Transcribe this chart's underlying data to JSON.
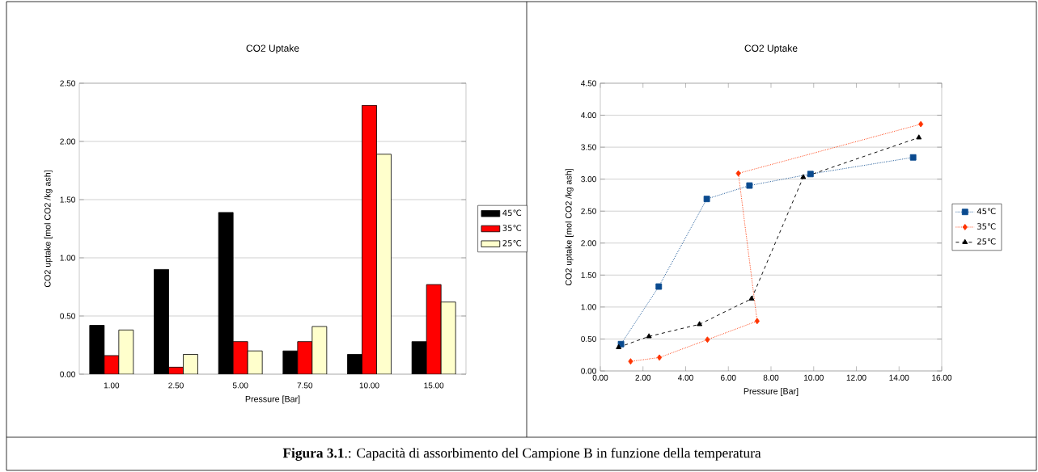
{
  "chart_data": [
    {
      "type": "bar",
      "title": "CO2 Uptake",
      "xlabel": "Pressure [Bar]",
      "ylabel": "CO2 uptake [mol CO2 /kg ash]",
      "categories": [
        "1.00",
        "2.50",
        "5.00",
        "7.50",
        "10.00",
        "15.00"
      ],
      "series": [
        {
          "name": "45℃",
          "color": "#000000",
          "values": [
            0.42,
            0.9,
            1.39,
            0.2,
            0.17,
            0.28
          ]
        },
        {
          "name": "35℃",
          "color": "#ff0000",
          "values": [
            0.16,
            0.06,
            0.28,
            0.28,
            2.31,
            0.77
          ]
        },
        {
          "name": "25℃",
          "color": "#ffffcc",
          "values": [
            0.38,
            0.17,
            0.2,
            0.41,
            1.89,
            0.62
          ]
        }
      ],
      "ylim": [
        0,
        2.5
      ],
      "yticks": [
        {
          "value": 0,
          "label": "0.00"
        },
        {
          "value": 0.5,
          "label": "0.50"
        },
        {
          "value": 1,
          "label": "1.00"
        },
        {
          "value": 1.5,
          "label": "1.50"
        },
        {
          "value": 2,
          "label": "2.00"
        },
        {
          "value": 2.5,
          "label": "2.50"
        }
      ],
      "grid": "y",
      "legend": "right",
      "annotations": [
        "**Figura 3.1**.: Capacità di assorbimento del Campione B in funzione della temperatura"
      ]
    },
    {
      "type": "line",
      "title": "CO2 Uptake",
      "xlabel": "Pressure [Bar]",
      "ylabel": "CO2 uptake [mol CO2 /kg ash]",
      "series": [
        {
          "name": "45℃",
          "color": "#0a4a8f",
          "marker": "square",
          "line_style": "dotted",
          "x": [
            0.97,
            2.74,
            4.99,
            6.99,
            9.85,
            14.66
          ],
          "values": [
            0.42,
            1.32,
            2.69,
            2.9,
            3.08,
            3.34
          ]
        },
        {
          "name": "35℃",
          "color": "#ff3300",
          "marker": "diamond",
          "line_style": "dotted",
          "x": [
            1.42,
            2.77,
            5.02,
            7.35,
            6.47,
            15.02
          ],
          "values": [
            0.15,
            0.21,
            0.49,
            0.78,
            3.09,
            3.86
          ]
        },
        {
          "name": "25℃",
          "color": "#000000",
          "marker": "triangle",
          "line_style": "dashed",
          "x": [
            0.86,
            2.28,
            4.65,
            7.09,
            9.51,
            14.93
          ],
          "values": [
            0.37,
            0.54,
            0.73,
            1.13,
            3.03,
            3.65
          ]
        }
      ],
      "xlim": [
        0,
        16
      ],
      "xticks": [
        {
          "value": 0,
          "label": "0.00"
        },
        {
          "value": 2,
          "label": "2.00"
        },
        {
          "value": 4,
          "label": "4.00"
        },
        {
          "value": 6,
          "label": "6.00"
        },
        {
          "value": 8,
          "label": "8.00"
        },
        {
          "value": 10,
          "label": "10.00"
        },
        {
          "value": 12,
          "label": "12.00"
        },
        {
          "value": 14,
          "label": "14.00"
        },
        {
          "value": 16,
          "label": "16.00"
        }
      ],
      "ylim": [
        0,
        4.5
      ],
      "yticks": [
        {
          "value": 0,
          "label": "0.00"
        },
        {
          "value": 0.5,
          "label": "0.50"
        },
        {
          "value": 1,
          "label": "1.00"
        },
        {
          "value": 1.5,
          "label": "1.50"
        },
        {
          "value": 2,
          "label": "2.00"
        },
        {
          "value": 2.5,
          "label": "2.50"
        },
        {
          "value": 3,
          "label": "3.00"
        },
        {
          "value": 3.5,
          "label": "3.50"
        },
        {
          "value": 4,
          "label": "4.00"
        },
        {
          "value": 4.5,
          "label": "4.50"
        }
      ],
      "grid": "y",
      "legend": "right"
    }
  ]
}
